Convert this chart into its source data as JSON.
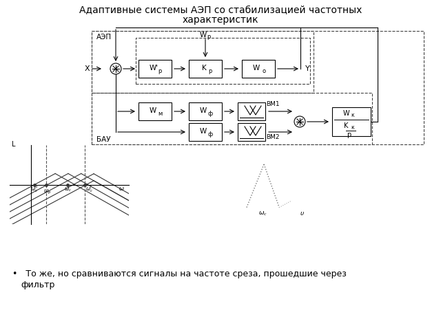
{
  "title_line1": "Адаптивные системы АЭП со стабилизацией частотных",
  "title_line2": "характеристик",
  "bullet_text": "То же, но сравниваются сигналы на частоте среза, прошедшие через\n     фильтр",
  "bg_color": "#ffffff",
  "line_color": "#000000",
  "box_color": "#ffffff",
  "box_edge": "#000000",
  "dash_color": "#444444",
  "gray_color": "#888888"
}
